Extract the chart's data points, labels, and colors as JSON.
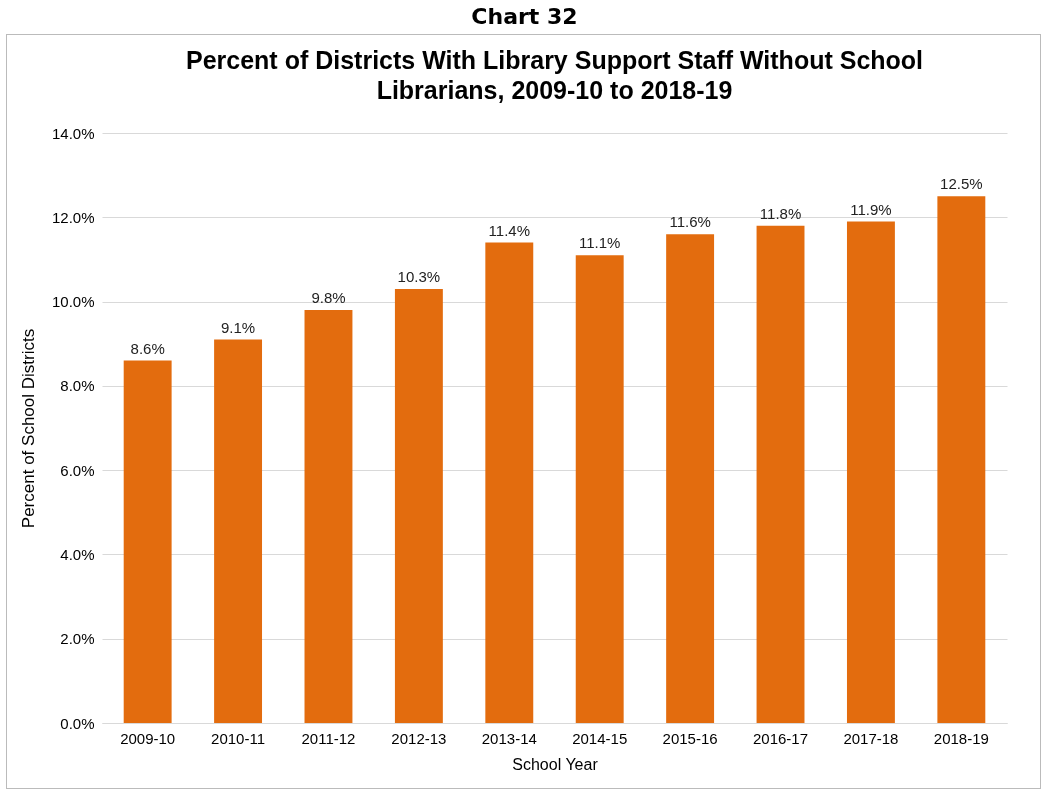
{
  "chart_data": {
    "type": "bar",
    "title": "Percent of Districts With Library Support Staff Without School Librarians, 2009-10 to 2018-19",
    "annotations": [
      "Chart 32"
    ],
    "xlabel": "School Year",
    "ylabel": "Percent of School Districts",
    "categories": [
      "2009-10",
      "2010-11",
      "2011-12",
      "2012-13",
      "2013-14",
      "2014-15",
      "2015-16",
      "2016-17",
      "2017-18",
      "2018-19"
    ],
    "values": [
      8.6,
      9.1,
      9.8,
      10.3,
      11.4,
      11.1,
      11.6,
      11.8,
      11.9,
      12.5
    ],
    "value_labels": [
      "8.6%",
      "9.1%",
      "9.8%",
      "10.3%",
      "11.4%",
      "11.1%",
      "11.6%",
      "11.8%",
      "11.9%",
      "12.5%"
    ],
    "color": "#e36c0e",
    "ylim": [
      0,
      14
    ],
    "yticks": [
      {
        "value": 0,
        "label": "0.0%"
      },
      {
        "value": 2,
        "label": "2.0%"
      },
      {
        "value": 4,
        "label": "4.0%"
      },
      {
        "value": 6,
        "label": "6.0%"
      },
      {
        "value": 8,
        "label": "8.0%"
      },
      {
        "value": 10,
        "label": "10.0%"
      },
      {
        "value": 12,
        "label": "12.0%"
      },
      {
        "value": 14,
        "label": "14.0%"
      }
    ],
    "grid": "y"
  }
}
